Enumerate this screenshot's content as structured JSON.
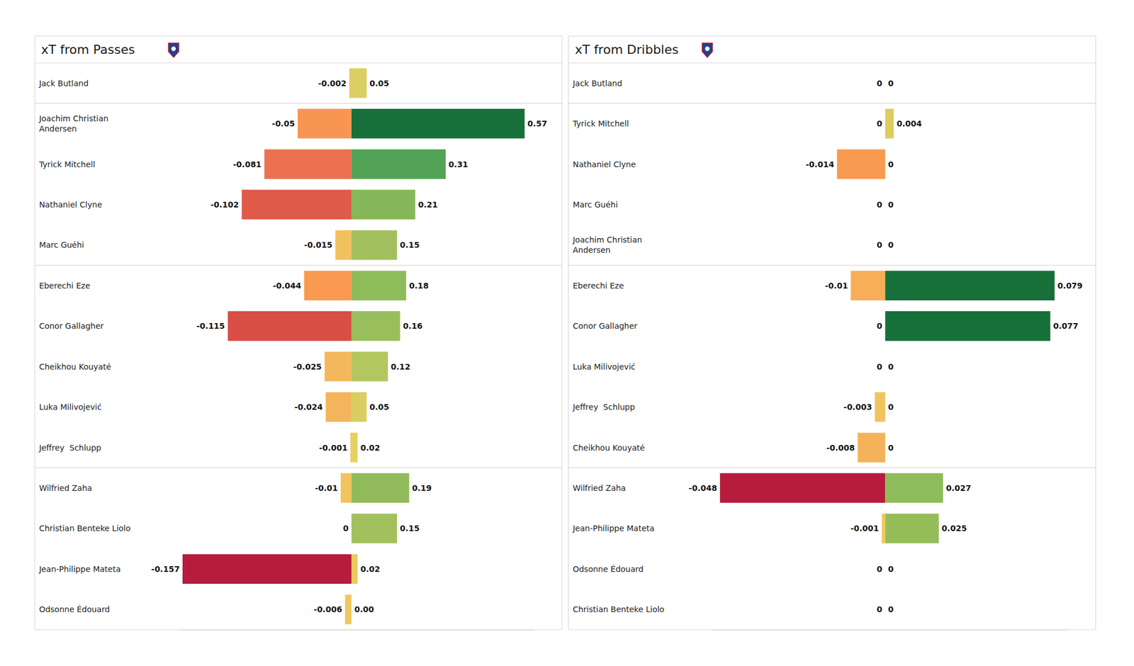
{
  "chart_data": [
    {
      "type": "bar",
      "title": "xT from Passes",
      "orientation": "horizontal",
      "data_labels": true,
      "tick_labels": false,
      "grid": false,
      "categories": [
        "Jack Butland",
        "Joachim Christian Andersen",
        "Tyrick Mitchell",
        "Nathaniel Clyne",
        "Marc Guéhi",
        "Eberechi Eze",
        "Conor Gallagher",
        "Cheikhou Kouyaté",
        "Luka Milivojević",
        "Jeffrey  Schlupp",
        "Wilfried Zaha",
        "Christian Benteke Liolo",
        "Jean-Philippe Mateta",
        "Odsonne Édouard"
      ],
      "series": [
        {
          "values": [
            -0.002,
            -0.05,
            -0.081,
            -0.102,
            -0.015,
            -0.044,
            -0.115,
            -0.025,
            -0.024,
            -0.001,
            -0.01,
            0,
            -0.157,
            -0.006
          ],
          "value_labels": [
            "-0.002",
            "-0.05",
            "-0.081",
            "-0.102",
            "-0.015",
            "-0.044",
            "-0.115",
            "-0.025",
            "-0.024",
            "-0.001",
            "-0.01",
            "0",
            "-0.157",
            "-0.006"
          ],
          "colors": [
            "#e8c65c",
            "#f99553",
            "#ec7150",
            "#e05a4a",
            "#f2c05c",
            "#f99a50",
            "#d94f46",
            "#f4b85c",
            "#f4b45c",
            "#f0c85f",
            "#f3c35e",
            "#eacb5e",
            "#b71c3d",
            "#f0c85f"
          ],
          "xlim": [
            -0.16,
            0
          ]
        },
        {
          "values": [
            0.05,
            0.57,
            0.31,
            0.21,
            0.15,
            0.18,
            0.16,
            0.12,
            0.05,
            0.02,
            0.19,
            0.15,
            0.02,
            0
          ],
          "value_labels": [
            "0.05",
            "0.57",
            "0.31",
            "0.21",
            "0.15",
            "0.18",
            "0.16",
            "0.12",
            "0.05",
            "0.02",
            "0.19",
            "0.15",
            "0.02",
            "0.00"
          ],
          "colors": [
            "#d9cf63",
            "#17703a",
            "#52a355",
            "#86b85a",
            "#a2c15e",
            "#8fbc5a",
            "#98bf5b",
            "#b3c65f",
            "#dace61",
            "#e8d060",
            "#91bb5a",
            "#a2c15e",
            "#eacb5e",
            "#eacb5e"
          ],
          "xlim": [
            0,
            0.6
          ]
        }
      ]
    },
    {
      "type": "bar",
      "title": "xT from Dribbles",
      "orientation": "horizontal",
      "data_labels": true,
      "tick_labels": false,
      "grid": false,
      "categories": [
        "Jack Butland",
        "Tyrick Mitchell",
        "Nathaniel Clyne",
        "Marc Guéhi",
        "Joachim Christian Andersen",
        "Eberechi Eze",
        "Conor Gallagher",
        "Luka Milivojević",
        "Jeffrey  Schlupp",
        "Cheikhou Kouyaté",
        "Wilfried Zaha",
        "Jean-Philippe Mateta",
        "Odsonne Édouard",
        "Christian Benteke Liolo"
      ],
      "series": [
        {
          "values": [
            0,
            0,
            -0.014,
            0,
            0,
            -0.01,
            0,
            0,
            -0.003,
            -0.008,
            -0.048,
            -0.001,
            0,
            0
          ],
          "value_labels": [
            "0",
            "0",
            "-0.014",
            "0",
            "0",
            "-0.01",
            "0",
            "0",
            "-0.003",
            "-0.008",
            "-0.048",
            "-0.001",
            "0",
            "0"
          ],
          "colors": [
            "#eacb5e",
            "#eacb5e",
            "#f89a50",
            "#eacb5e",
            "#eacb5e",
            "#f6ae58",
            "#eacb5e",
            "#eacb5e",
            "#f0c55e",
            "#f4b35a",
            "#b71c3d",
            "#f0c85f",
            "#eacb5e",
            "#eacb5e"
          ],
          "xlim": [
            -0.05,
            0
          ]
        },
        {
          "values": [
            0,
            0.004,
            0,
            0,
            0,
            0.079,
            0.077,
            0,
            0,
            0,
            0.027,
            0.025,
            0,
            0
          ],
          "value_labels": [
            "0",
            "0.004",
            "0",
            "0",
            "0",
            "0.079",
            "0.077",
            "0",
            "0",
            "0",
            "0.027",
            "0.025",
            "0",
            "0"
          ],
          "colors": [
            "#eacb5e",
            "#dccd60",
            "#eacb5e",
            "#eacb5e",
            "#eacb5e",
            "#17703a",
            "#17703a",
            "#eacb5e",
            "#eacb5e",
            "#eacb5e",
            "#8fbc5a",
            "#94bd5a",
            "#eacb5e",
            "#eacb5e"
          ],
          "xlim": [
            0,
            0.085
          ]
        }
      ]
    }
  ]
}
